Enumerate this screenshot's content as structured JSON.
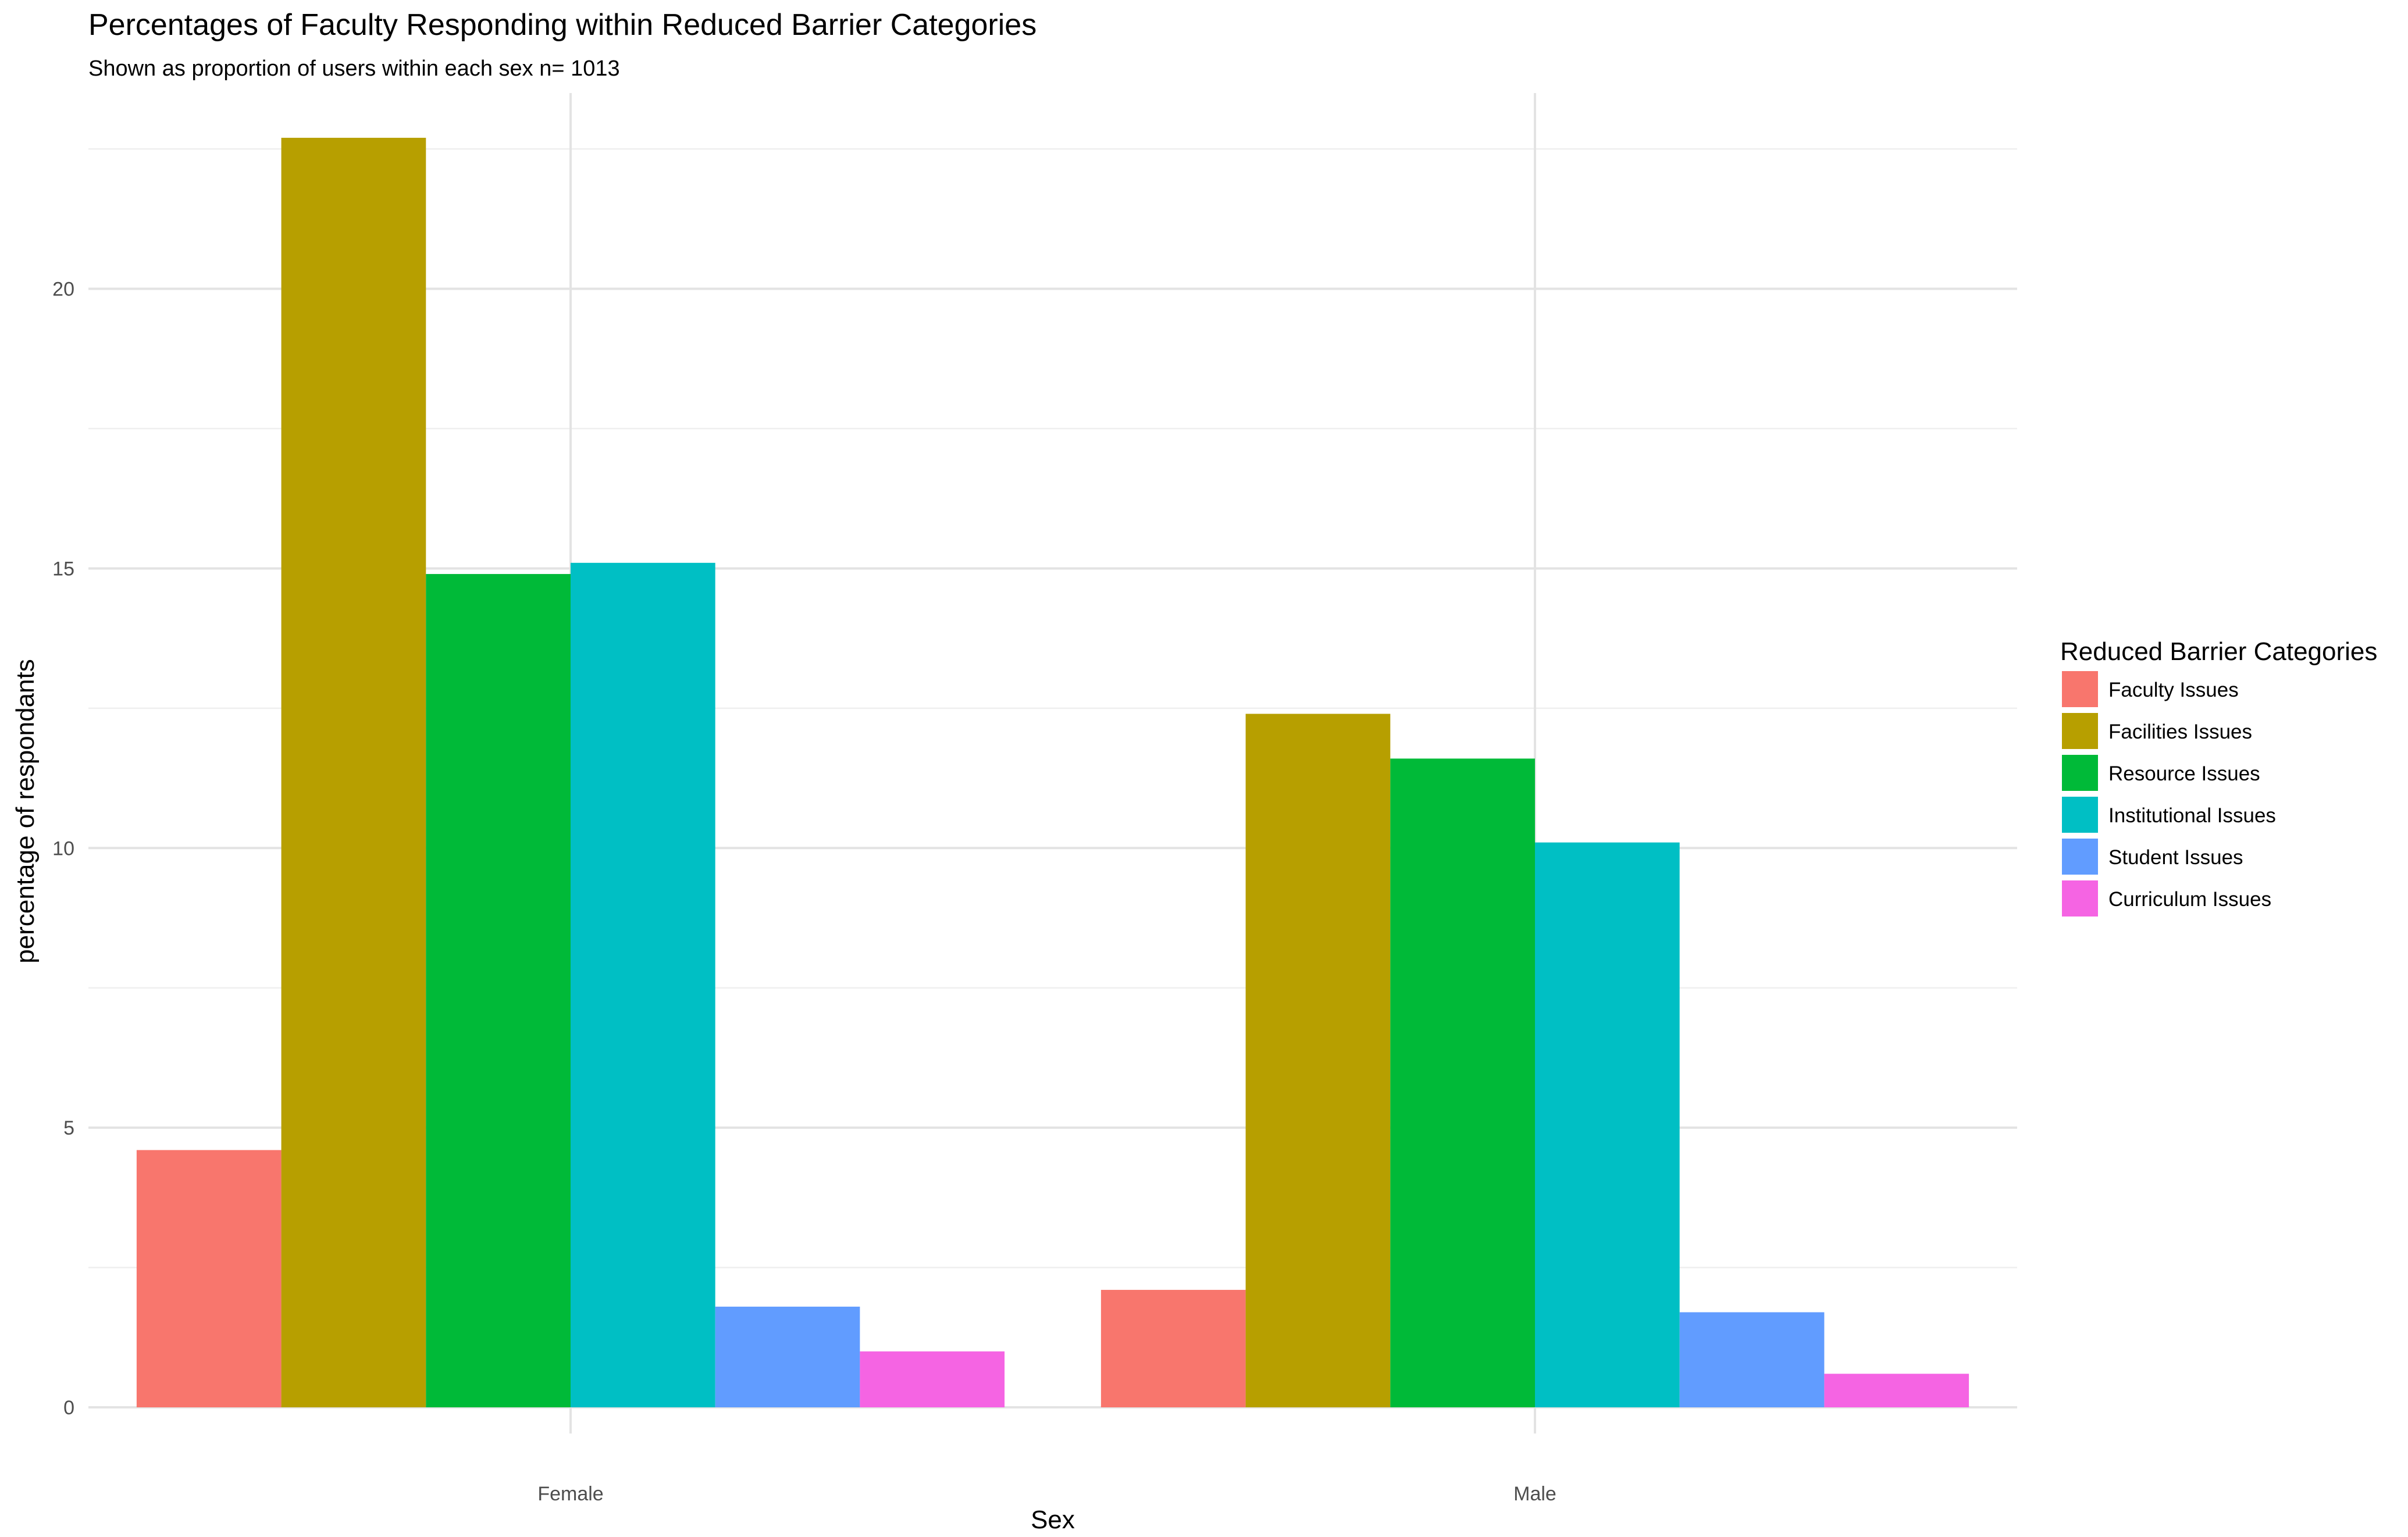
{
  "chart_data": {
    "type": "bar",
    "title": "Percentages of Faculty Responding within Reduced Barrier Categories",
    "subtitle": "Shown as proportion of users within each sex n= 1013",
    "xlabel": "Sex",
    "ylabel": "percentage of respondants",
    "categories": [
      "Female",
      "Male"
    ],
    "ylim": [
      0,
      23.5
    ],
    "yticks": [
      0,
      5,
      10,
      15,
      20
    ],
    "ytick_labels": [
      "0",
      "5",
      "10",
      "15",
      "20"
    ],
    "grid": true,
    "legend": {
      "title": "Reduced Barrier Categories",
      "position": "right"
    },
    "series": [
      {
        "name": "Faculty Issues",
        "color": "#F8766D",
        "values": [
          4.6,
          2.1
        ]
      },
      {
        "name": "Facilities Issues",
        "color": "#B79F00",
        "values": [
          22.7,
          12.4
        ]
      },
      {
        "name": "Resource Issues",
        "color": "#00BA38",
        "values": [
          14.9,
          11.6
        ]
      },
      {
        "name": "Institutional Issues",
        "color": "#00BFC4",
        "values": [
          15.1,
          10.1
        ]
      },
      {
        "name": "Student Issues",
        "color": "#619CFF",
        "values": [
          1.8,
          1.7
        ]
      },
      {
        "name": "Curriculum Issues",
        "color": "#F564E3",
        "values": [
          1.0,
          0.6
        ]
      }
    ]
  }
}
